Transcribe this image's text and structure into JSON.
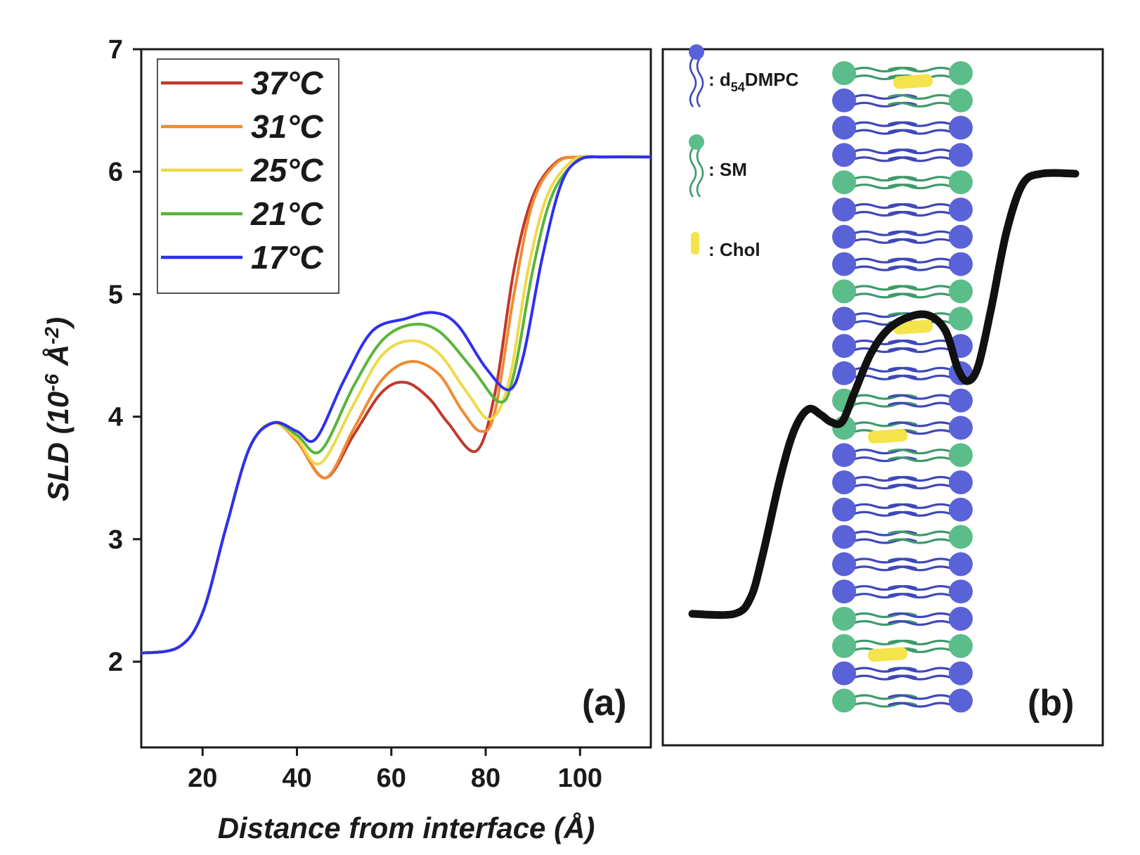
{
  "chart_data": {
    "type": "line",
    "panel_a_label": "(a)",
    "panel_b_label": "(b)",
    "xlabel": "Distance from interface (Å)",
    "ylabel": "SLD (10",
    "ylabel_exp1": "-6",
    "ylabel_mid": " Å",
    "ylabel_exp2": "-2",
    "ylabel_end": ")",
    "xlim": [
      7,
      115
    ],
    "ylim": [
      1.3,
      7
    ],
    "xticks": [
      20,
      40,
      60,
      80,
      100
    ],
    "yticks": [
      2,
      3,
      4,
      5,
      6,
      7
    ],
    "legend_position": "top-left",
    "grid": false,
    "series": [
      {
        "name": "37°C",
        "color": "#c0392b",
        "x": [
          7,
          15,
          20,
          25,
          30,
          35,
          40,
          46,
          52,
          58,
          63,
          68,
          72,
          78,
          82,
          86,
          90,
          95,
          100,
          105,
          115
        ],
        "y": [
          2.07,
          2.12,
          2.4,
          3.1,
          3.75,
          3.95,
          3.8,
          3.5,
          3.85,
          4.2,
          4.28,
          4.15,
          3.95,
          3.72,
          4.2,
          5.2,
          5.8,
          6.08,
          6.12,
          6.12,
          6.12
        ]
      },
      {
        "name": "31°C",
        "color": "#f08b32",
        "x": [
          7,
          15,
          20,
          25,
          30,
          35,
          40,
          46,
          52,
          58,
          64,
          70,
          75,
          79,
          82,
          86,
          90,
          95,
          100,
          105,
          115
        ],
        "y": [
          2.07,
          2.12,
          2.4,
          3.1,
          3.75,
          3.95,
          3.8,
          3.5,
          3.9,
          4.3,
          4.45,
          4.35,
          4.05,
          3.88,
          4.05,
          5.0,
          5.75,
          6.07,
          6.12,
          6.12,
          6.12
        ]
      },
      {
        "name": "25°C",
        "color": "#eed94a",
        "x": [
          7,
          15,
          20,
          25,
          30,
          35,
          40,
          45,
          52,
          58,
          64,
          70,
          76,
          81,
          85,
          89,
          93,
          98,
          102,
          106,
          115
        ],
        "y": [
          2.07,
          2.12,
          2.4,
          3.1,
          3.75,
          3.95,
          3.82,
          3.62,
          4.1,
          4.5,
          4.62,
          4.52,
          4.2,
          3.98,
          4.3,
          5.2,
          5.8,
          6.08,
          6.12,
          6.12,
          6.12
        ]
      },
      {
        "name": "21°C",
        "color": "#5ab53a",
        "x": [
          7,
          15,
          20,
          25,
          30,
          35,
          40,
          45,
          52,
          58,
          64,
          70,
          77,
          83,
          86,
          90,
          94,
          99,
          103,
          107,
          115
        ],
        "y": [
          2.07,
          2.12,
          2.4,
          3.1,
          3.75,
          3.95,
          3.85,
          3.72,
          4.25,
          4.62,
          4.75,
          4.7,
          4.4,
          4.12,
          4.35,
          5.2,
          5.8,
          6.08,
          6.12,
          6.12,
          6.12
        ]
      },
      {
        "name": "17°C",
        "color": "#2f2ff0",
        "x": [
          7,
          15,
          20,
          25,
          30,
          35,
          40,
          44,
          50,
          56,
          63,
          69,
          74,
          80,
          85,
          88,
          92,
          96,
          100,
          106,
          115
        ],
        "y": [
          2.07,
          2.12,
          2.4,
          3.1,
          3.75,
          3.95,
          3.88,
          3.82,
          4.3,
          4.7,
          4.8,
          4.85,
          4.75,
          4.4,
          4.22,
          4.5,
          5.3,
          5.9,
          6.1,
          6.12,
          6.12
        ]
      }
    ]
  },
  "schematic": {
    "key": [
      {
        "icon": "d54dmpc-lipid-icon",
        "label_prefix": ": d",
        "label_sub": "54",
        "label_suffix": "DMPC",
        "color": "#5a62d8"
      },
      {
        "icon": "sm-lipid-icon",
        "label_prefix": ": SM",
        "label_sub": "",
        "label_suffix": "",
        "color": "#5bbd8a"
      },
      {
        "icon": "chol-icon",
        "label_prefix": ": Chol",
        "label_sub": "",
        "label_suffix": "",
        "color": "#f4e34a"
      }
    ],
    "left_leaflet": [
      "SM",
      "DMPC",
      "DMPC",
      "DMPC",
      "SM",
      "DMPC",
      "DMPC",
      "DMPC",
      "SM",
      "DMPC",
      "DMPC",
      "DMPC",
      "SM",
      "SM",
      "DMPC",
      "DMPC",
      "DMPC",
      "DMPC",
      "DMPC",
      "DMPC",
      "SM",
      "SM",
      "DMPC",
      "SM"
    ],
    "right_leaflet": [
      "SM",
      "SM",
      "DMPC",
      "DMPC",
      "SM",
      "DMPC",
      "DMPC",
      "DMPC",
      "SM",
      "SM",
      "DMPC",
      "DMPC",
      "DMPC",
      "DMPC",
      "SM",
      "DMPC",
      "DMPC",
      "SM",
      "DMPC",
      "DMPC",
      "DMPC",
      "SM",
      "DMPC",
      "DMPC"
    ],
    "chol_rows": [
      0,
      9,
      13,
      21
    ],
    "chol_side": [
      "right",
      "right",
      "left",
      "left"
    ],
    "profile_color": "#111111",
    "profile_colors": {
      "dmpc": "#5a62d8",
      "dmpc_tail": "#3f48b8",
      "sm": "#5bbd8a",
      "sm_tail": "#3f9a6a",
      "chol": "#f4e34a"
    }
  }
}
